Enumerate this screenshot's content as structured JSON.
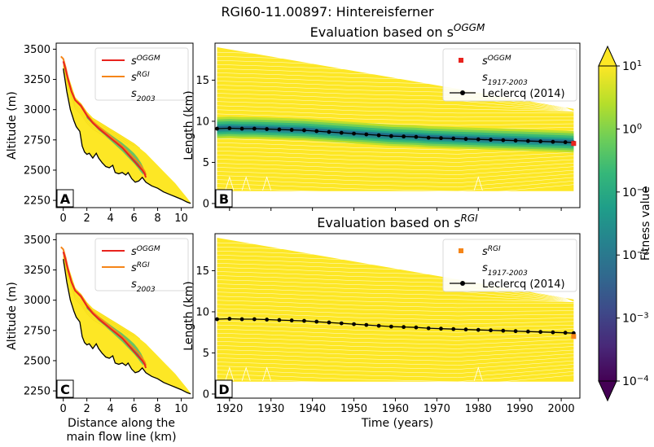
{
  "figure": {
    "title": "RGI60-11.00897: Hintereisferner",
    "colors": {
      "background": "#ffffff",
      "axis": "#000000",
      "yellow": "#fde725",
      "red": "#e8231e",
      "orange": "#f58518",
      "black": "#000000"
    }
  },
  "chart_data": [
    {
      "id": "A",
      "type": "line",
      "panel_label": "A",
      "xlabel": "",
      "ylabel": "Altitude (m)",
      "xlim": [
        -0.6,
        11
      ],
      "ylim": [
        2190,
        3550
      ],
      "xticks": [
        0,
        2,
        4,
        6,
        8,
        10
      ],
      "yticks": [
        2250,
        2500,
        2750,
        3000,
        3250,
        3500
      ],
      "show_xticklabels": true,
      "legend": {
        "position": "upper-right",
        "entries": [
          "s^OGGM",
          "s^RGI",
          "s_2003"
        ]
      },
      "bed": {
        "x": [
          0,
          0.3,
          0.6,
          0.9,
          1.1,
          1.4,
          1.6,
          1.8,
          2.0,
          2.2,
          2.5,
          2.8,
          3.0,
          3.3,
          3.6,
          3.9,
          4.2,
          4.4,
          4.7,
          5.0,
          5.3,
          5.5,
          5.8,
          6.1,
          6.4,
          6.7,
          7.0,
          7.5,
          8,
          8.5,
          9,
          9.5,
          10,
          10.5,
          10.8
        ],
        "y": [
          3340,
          3150,
          3000,
          2910,
          2860,
          2820,
          2700,
          2650,
          2630,
          2640,
          2600,
          2640,
          2600,
          2560,
          2530,
          2520,
          2540,
          2480,
          2470,
          2480,
          2460,
          2480,
          2430,
          2400,
          2410,
          2440,
          2400,
          2370,
          2350,
          2320,
          2300,
          2280,
          2260,
          2235,
          2225
        ]
      },
      "series": [
        {
          "name": "s^RGI",
          "color": "#f58518",
          "x": [
            -0.2,
            0,
            0.2,
            0.4,
            0.7,
            1,
            1.5,
            2,
            2.5,
            3,
            3.5,
            4,
            4.5,
            5,
            5.5,
            6,
            6.4,
            6.7,
            6.9,
            7.0
          ],
          "y": [
            3440,
            3420,
            3350,
            3260,
            3150,
            3080,
            3040,
            2960,
            2900,
            2860,
            2820,
            2780,
            2740,
            2700,
            2650,
            2600,
            2560,
            2520,
            2490,
            2460
          ]
        },
        {
          "name": "s^OGGM",
          "color": "#e8231e",
          "x": [
            0,
            0.2,
            0.4,
            0.7,
            1,
            1.5,
            2,
            2.5,
            3,
            3.5,
            4,
            4.5,
            5,
            5.5,
            6,
            6.4,
            6.7,
            6.9,
            7.0
          ],
          "y": [
            3400,
            3330,
            3250,
            3150,
            3080,
            3030,
            2950,
            2890,
            2845,
            2805,
            2765,
            2725,
            2685,
            2630,
            2575,
            2530,
            2500,
            2470,
            2440
          ]
        }
      ]
    },
    {
      "id": "C",
      "type": "line",
      "panel_label": "C",
      "xlabel": "Distance along the main flow line (km)",
      "xlabel_lines": [
        "Distance along the",
        "main flow line (km)"
      ],
      "ylabel": "Altitude (m)",
      "xlim": [
        -0.6,
        11
      ],
      "ylim": [
        2190,
        3550
      ],
      "xticks": [
        0,
        2,
        4,
        6,
        8,
        10
      ],
      "yticks": [
        2250,
        2500,
        2750,
        3000,
        3250,
        3500
      ],
      "show_xticklabels": true,
      "legend": {
        "position": "upper-right",
        "entries": [
          "s^OGGM",
          "s^RGI",
          "s_2003"
        ]
      },
      "bed": {
        "x": [
          0,
          0.3,
          0.6,
          0.9,
          1.1,
          1.4,
          1.6,
          1.8,
          2.0,
          2.2,
          2.5,
          2.8,
          3.0,
          3.3,
          3.6,
          3.9,
          4.2,
          4.4,
          4.7,
          5.0,
          5.3,
          5.5,
          5.8,
          6.1,
          6.4,
          6.7,
          7.0,
          7.5,
          8,
          8.5,
          9,
          9.5,
          10,
          10.5,
          10.8
        ],
        "y": [
          3340,
          3150,
          3000,
          2910,
          2860,
          2820,
          2700,
          2650,
          2630,
          2640,
          2600,
          2640,
          2600,
          2560,
          2530,
          2520,
          2540,
          2480,
          2470,
          2480,
          2460,
          2480,
          2430,
          2400,
          2410,
          2440,
          2400,
          2370,
          2350,
          2320,
          2300,
          2280,
          2260,
          2235,
          2225
        ]
      },
      "series": [
        {
          "name": "s^RGI",
          "color": "#f58518",
          "x": [
            -0.2,
            0,
            0.2,
            0.4,
            0.7,
            1,
            1.5,
            2,
            2.5,
            3,
            3.5,
            4,
            4.5,
            5,
            5.5,
            6,
            6.4,
            6.7,
            6.9,
            7.0
          ],
          "y": [
            3440,
            3420,
            3350,
            3260,
            3150,
            3080,
            3040,
            2960,
            2900,
            2860,
            2820,
            2780,
            2740,
            2700,
            2650,
            2600,
            2560,
            2520,
            2490,
            2460
          ]
        },
        {
          "name": "s^OGGM",
          "color": "#e8231e",
          "x": [
            0,
            0.2,
            0.4,
            0.7,
            1,
            1.5,
            2,
            2.5,
            3,
            3.5,
            4,
            4.5,
            5,
            5.5,
            6,
            6.4,
            6.7,
            6.9,
            7.0
          ],
          "y": [
            3400,
            3330,
            3250,
            3150,
            3080,
            3030,
            2950,
            2890,
            2845,
            2805,
            2765,
            2725,
            2685,
            2630,
            2575,
            2530,
            2500,
            2470,
            2440
          ]
        }
      ]
    },
    {
      "id": "B",
      "type": "line",
      "title": "Evaluation based on s^OGGM",
      "panel_label": "B",
      "xlabel": "",
      "ylabel": "Length (km)",
      "xlim": [
        1916.5,
        2004.5
      ],
      "ylim": [
        -0.5,
        19.5
      ],
      "xticks": [
        1920,
        1930,
        1940,
        1950,
        1960,
        1970,
        1980,
        1990,
        2000
      ],
      "yticks": [
        0,
        5,
        10,
        15
      ],
      "show_xticklabels": false,
      "legend": {
        "position": "upper-right",
        "entries": [
          "s^OGGM",
          "s_1917-2003",
          "Leclercq (2014)"
        ]
      },
      "envelope": {
        "upper_start": 19.0,
        "upper_end": 11.5,
        "lower": 1.5
      },
      "fit_band": {
        "color": "#1f6f8b",
        "offset_high": 1.4,
        "offset_low": -1.2
      },
      "marker": {
        "label": "s^OGGM",
        "x": 2003,
        "y": 7.3,
        "color": "#e8231e"
      },
      "series": [
        {
          "name": "Leclercq (2014)",
          "color": "#000000",
          "x": [
            1917,
            1920,
            1923,
            1926,
            1929,
            1932,
            1935,
            1938,
            1941,
            1944,
            1947,
            1950,
            1953,
            1956,
            1959,
            1962,
            1965,
            1968,
            1971,
            1974,
            1977,
            1980,
            1983,
            1986,
            1989,
            1992,
            1995,
            1998,
            2001,
            2003
          ],
          "y": [
            9.1,
            9.15,
            9.1,
            9.1,
            9.05,
            9.0,
            8.95,
            8.9,
            8.8,
            8.7,
            8.6,
            8.5,
            8.4,
            8.3,
            8.2,
            8.15,
            8.1,
            8.0,
            7.95,
            7.9,
            7.85,
            7.8,
            7.75,
            7.7,
            7.65,
            7.6,
            7.55,
            7.5,
            7.45,
            7.4
          ]
        }
      ]
    },
    {
      "id": "D",
      "type": "line",
      "title": "Evaluation based on s^RGI",
      "panel_label": "D",
      "xlabel": "Time (years)",
      "ylabel": "Length (km)",
      "xlim": [
        1916.5,
        2004.5
      ],
      "ylim": [
        -0.5,
        19.5
      ],
      "xticks": [
        1920,
        1930,
        1940,
        1950,
        1960,
        1970,
        1980,
        1990,
        2000
      ],
      "yticks": [
        0,
        5,
        10,
        15
      ],
      "show_xticklabels": true,
      "legend": {
        "position": "upper-right",
        "entries": [
          "s^RGI",
          "s_1917-2003",
          "Leclercq (2014)"
        ]
      },
      "envelope": {
        "upper_start": 19.0,
        "upper_end": 11.5,
        "lower": 1.5
      },
      "fit_band": null,
      "marker": {
        "label": "s^RGI",
        "x": 2003,
        "y": 7.0,
        "color": "#f58518"
      },
      "series": [
        {
          "name": "Leclercq (2014)",
          "color": "#000000",
          "x": [
            1917,
            1920,
            1923,
            1926,
            1929,
            1932,
            1935,
            1938,
            1941,
            1944,
            1947,
            1950,
            1953,
            1956,
            1959,
            1962,
            1965,
            1968,
            1971,
            1974,
            1977,
            1980,
            1983,
            1986,
            1989,
            1992,
            1995,
            1998,
            2001,
            2003
          ],
          "y": [
            9.1,
            9.15,
            9.1,
            9.1,
            9.05,
            9.0,
            8.95,
            8.9,
            8.8,
            8.7,
            8.6,
            8.5,
            8.4,
            8.3,
            8.2,
            8.15,
            8.1,
            8.0,
            7.95,
            7.9,
            7.85,
            7.8,
            7.75,
            7.7,
            7.65,
            7.6,
            7.55,
            7.5,
            7.45,
            7.4
          ]
        }
      ]
    },
    {
      "id": "colorbar",
      "type": "heatmap",
      "label": "Fitness value",
      "scale": "log",
      "range": [
        0.0001,
        10
      ],
      "ticks": [
        "10^1",
        "10^0",
        "10^-1",
        "10^-2",
        "10^-3",
        "10^-4"
      ],
      "colormap": [
        "#440154",
        "#482878",
        "#3e4989",
        "#31688e",
        "#26828e",
        "#1f9e89",
        "#35b779",
        "#6ece58",
        "#b5de2b",
        "#fde725"
      ]
    }
  ]
}
